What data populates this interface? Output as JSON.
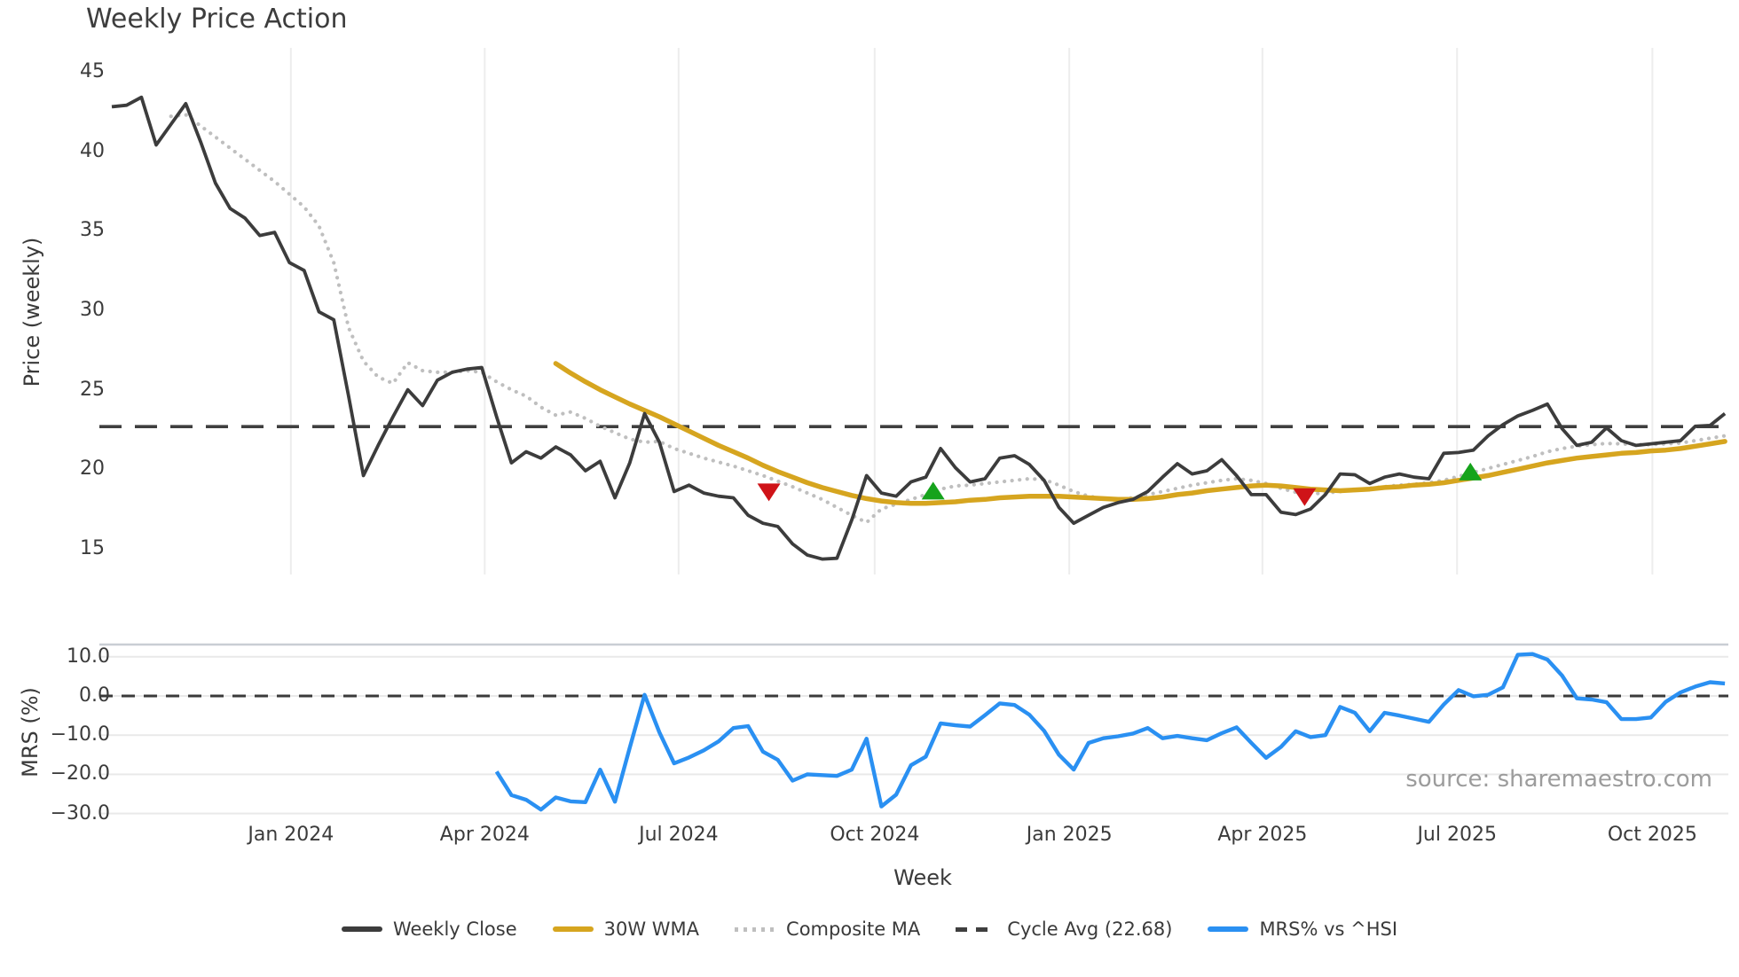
{
  "title": "Weekly Price Action",
  "source_note": "source: sharemaestro.com",
  "axes": {
    "price": {
      "label": "Price (weekly)",
      "ticks": [
        "45",
        "40",
        "35",
        "30",
        "25",
        "20",
        "15"
      ],
      "tick_values": [
        45,
        40,
        35,
        30,
        25,
        20,
        15
      ]
    },
    "mrs": {
      "label": "MRS (%)",
      "ticks": [
        "10.0",
        "0.0",
        "−10.0",
        "−20.0",
        "−30.0"
      ],
      "tick_values": [
        10,
        0,
        -10,
        -20,
        -30
      ]
    },
    "week": {
      "label": "Week",
      "ticks": [
        "Jan 2024",
        "Apr 2024",
        "Jul 2024",
        "Oct 2024",
        "Jan 2025",
        "Apr 2025",
        "Jul 2025",
        "Oct 2025"
      ],
      "tick_weeks": [
        12.1,
        25.2,
        38.3,
        51.55,
        64.7,
        77.75,
        90.9,
        104.1
      ]
    }
  },
  "legend": [
    {
      "label": "Weekly Close",
      "style": "solid",
      "color": "#3c3c3c"
    },
    {
      "label": "30W WMA",
      "style": "solid",
      "color": "#d6a51f"
    },
    {
      "label": "Composite MA",
      "style": "dotted",
      "color": "#bfbfbf"
    },
    {
      "label": "Cycle Avg (22.68)",
      "style": "dashed",
      "color": "#3f3f3f"
    },
    {
      "label": "MRS% vs ^HSI",
      "style": "solid",
      "color": "#2a90f2"
    }
  ],
  "chart_data": [
    {
      "type": "line",
      "panel": "price",
      "ylabel": "Price (weekly)",
      "ylim": [
        13.5,
        46.5
      ],
      "x_unit": "weeks (week 0 ≈ late Sep 2023, quarterly ticks Jan 2024 – Oct 2025)",
      "grid": "vertical-quarterly",
      "cycle_avg": 22.68,
      "series": [
        {
          "name": "Weekly Close",
          "start_week": 0,
          "color": "#3c3c3c",
          "style": "solid",
          "values": [
            42.8,
            42.9,
            43.4,
            40.4,
            41.7,
            43.0,
            40.6,
            38.0,
            36.4,
            35.8,
            34.7,
            34.9,
            33.0,
            32.5,
            29.9,
            29.4,
            24.6,
            19.6,
            21.5,
            23.3,
            25.0,
            24.0,
            25.6,
            26.1,
            26.3,
            26.4,
            23.3,
            20.4,
            21.1,
            20.7,
            21.4,
            20.9,
            19.9,
            20.5,
            18.2,
            20.4,
            23.5,
            21.7,
            18.6,
            19.0,
            18.5,
            18.3,
            18.2,
            17.1,
            16.6,
            16.4,
            15.3,
            14.6,
            14.35,
            14.4,
            16.8,
            19.6,
            18.5,
            18.3,
            19.2,
            19.5,
            21.3,
            20.1,
            19.2,
            19.4,
            20.7,
            20.85,
            20.3,
            19.3,
            17.6,
            16.6,
            17.1,
            17.6,
            17.9,
            18.1,
            18.6,
            19.5,
            20.35,
            19.7,
            19.9,
            20.6,
            19.6,
            18.4,
            18.4,
            17.3,
            17.15,
            17.5,
            18.4,
            19.7,
            19.65,
            19.1,
            19.5,
            19.7,
            19.5,
            19.4,
            21.0,
            21.05,
            21.2,
            22.1,
            22.8,
            23.35,
            23.7,
            24.1,
            22.55,
            21.5,
            21.7,
            22.6,
            21.8,
            21.5,
            21.6,
            21.7,
            21.8,
            22.7,
            22.75,
            23.5
          ]
        },
        {
          "name": "30W WMA",
          "start_week": 30,
          "color": "#d6a51f",
          "style": "solid",
          "values": [
            26.65,
            26.05,
            25.5,
            25.0,
            24.55,
            24.1,
            23.7,
            23.3,
            22.85,
            22.4,
            21.95,
            21.5,
            21.1,
            20.7,
            20.25,
            19.85,
            19.5,
            19.15,
            18.85,
            18.6,
            18.35,
            18.15,
            18.0,
            17.9,
            17.85,
            17.85,
            17.9,
            17.95,
            18.05,
            18.1,
            18.2,
            18.25,
            18.3,
            18.3,
            18.3,
            18.25,
            18.2,
            18.15,
            18.1,
            18.1,
            18.15,
            18.25,
            18.4,
            18.5,
            18.65,
            18.75,
            18.85,
            18.95,
            19.0,
            18.95,
            18.85,
            18.75,
            18.7,
            18.65,
            18.7,
            18.75,
            18.85,
            18.9,
            19.0,
            19.05,
            19.15,
            19.3,
            19.45,
            19.6,
            19.8,
            20.0,
            20.2,
            20.4,
            20.55,
            20.7,
            20.8,
            20.9,
            21.0,
            21.05,
            21.15,
            21.2,
            21.3,
            21.45,
            21.6,
            21.75
          ]
        },
        {
          "name": "Composite MA",
          "start_week": 4,
          "color": "#bfbfbf",
          "style": "dotted",
          "values": [
            42.2,
            42.3,
            41.6,
            40.9,
            40.2,
            39.5,
            38.8,
            38.1,
            37.3,
            36.5,
            35.3,
            33.0,
            28.9,
            26.8,
            25.8,
            25.4,
            26.7,
            26.2,
            26.1,
            26.1,
            26.2,
            26.1,
            25.5,
            25.0,
            24.6,
            23.9,
            23.4,
            23.6,
            23.2,
            22.7,
            22.3,
            21.9,
            21.7,
            21.75,
            21.3,
            21.0,
            20.7,
            20.45,
            20.2,
            19.9,
            19.6,
            19.25,
            18.9,
            18.5,
            18.1,
            17.6,
            17.1,
            16.65,
            17.5,
            17.8,
            18.1,
            18.4,
            18.75,
            18.95,
            19.0,
            19.1,
            19.2,
            19.3,
            19.4,
            19.35,
            19.0,
            18.6,
            18.3,
            18.15,
            18.1,
            18.2,
            18.4,
            18.6,
            18.8,
            19.0,
            19.15,
            19.3,
            19.4,
            19.3,
            19.1,
            18.8,
            18.55,
            18.45,
            18.5,
            18.6,
            18.7,
            18.8,
            18.9,
            19.0,
            19.05,
            19.15,
            19.3,
            19.55,
            19.8,
            20.05,
            20.3,
            20.55,
            20.8,
            21.1,
            21.3,
            21.45,
            21.55,
            21.62,
            21.6,
            21.55,
            21.55,
            21.6,
            21.65,
            21.8,
            21.95,
            22.1
          ]
        }
      ],
      "signals": {
        "sell_markers": [
          {
            "week": 44.4,
            "value": 18.6
          },
          {
            "week": 80.6,
            "value": 18.3
          }
        ],
        "buy_markers": [
          {
            "week": 55.5,
            "value": 18.6
          },
          {
            "week": 91.8,
            "value": 19.8
          }
        ],
        "sell_color": "#cf1318",
        "buy_color": "#16a31c"
      }
    },
    {
      "type": "line",
      "panel": "mrs",
      "ylabel": "MRS (%)",
      "ylim": [
        -32.5,
        13
      ],
      "zero_line": 0,
      "grid": "horizontal",
      "series": [
        {
          "name": "MRS% vs ^HSI",
          "start_week": 26,
          "color": "#2a90f2",
          "style": "solid",
          "values": [
            -19.3,
            -25.3,
            -26.5,
            -29.0,
            -25.9,
            -26.9,
            -27.1,
            -18.8,
            -27.0,
            -13.2,
            0.3,
            -9.3,
            -17.2,
            -15.7,
            -13.9,
            -11.6,
            -8.2,
            -7.7,
            -14.2,
            -16.3,
            -21.6,
            -20.0,
            -20.2,
            -20.4,
            -18.8,
            -10.9,
            -28.2,
            -25.2,
            -17.7,
            -15.5,
            -7.0,
            -7.5,
            -7.8,
            -4.9,
            -1.9,
            -2.3,
            -4.8,
            -8.9,
            -15.0,
            -18.8,
            -12.0,
            -10.8,
            -10.3,
            -9.6,
            -8.2,
            -10.8,
            -10.2,
            -10.8,
            -11.3,
            -9.5,
            -8.0,
            -12.0,
            -15.8,
            -13.0,
            -9.0,
            -10.5,
            -10.0,
            -2.8,
            -4.3,
            -9.0,
            -4.3,
            -5.0,
            -5.8,
            -6.6,
            -2.2,
            1.5,
            -0.1,
            0.3,
            2.2,
            10.5,
            10.7,
            9.3,
            5.2,
            -0.6,
            -0.9,
            -1.6,
            -5.9,
            -5.9,
            -5.5,
            -1.5,
            0.9,
            2.4,
            3.5,
            3.2
          ]
        }
      ]
    }
  ]
}
